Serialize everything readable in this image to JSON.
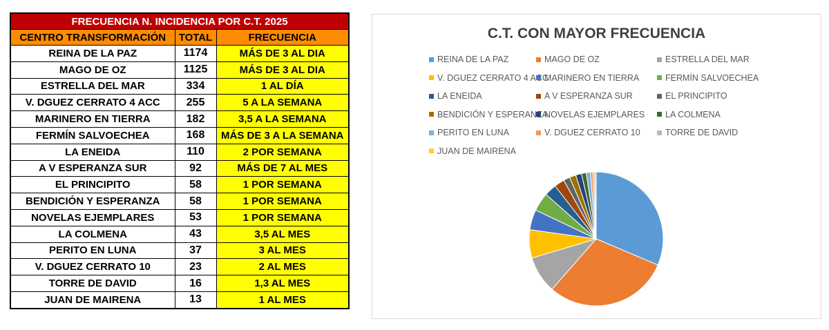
{
  "table": {
    "title": "FRECUENCIA N. INCIDENCIA POR C.T.  2025",
    "headers": [
      "CENTRO TRANSFORMACIÓN",
      "TOTAL",
      "FRECUENCIA"
    ],
    "rows": [
      {
        "name": "REINA DE LA PAZ",
        "total": "1174",
        "freq": "MÁS DE 3 AL DIA"
      },
      {
        "name": "MAGO DE OZ",
        "total": "1125",
        "freq": "MÁS DE 3 AL DIA"
      },
      {
        "name": "ESTRELLA DEL MAR",
        "total": "334",
        "freq": "1 AL DÍA"
      },
      {
        "name": "V. DGUEZ CERRATO 4 ACC",
        "total": "255",
        "freq": "5 A LA SEMANA"
      },
      {
        "name": "MARINERO EN TIERRA",
        "total": "182",
        "freq": "3,5 A LA SEMANA"
      },
      {
        "name": "FERMÍN SALVOECHEA",
        "total": "168",
        "freq": "MÁS DE 3 A LA SEMANA"
      },
      {
        "name": "LA ENEIDA",
        "total": "110",
        "freq": "2 POR SEMANA"
      },
      {
        "name": "A V ESPERANZA SUR",
        "total": "92",
        "freq": "MÁS DE 7 AL MES"
      },
      {
        "name": "EL PRINCIPITO",
        "total": "58",
        "freq": "1 POR SEMANA"
      },
      {
        "name": "BENDICIÓN Y ESPERANZA",
        "total": "58",
        "freq": "1 POR SEMANA"
      },
      {
        "name": "NOVELAS EJEMPLARES",
        "total": "53",
        "freq": "1 POR SEMANA"
      },
      {
        "name": "LA COLMENA",
        "total": "43",
        "freq": "3,5 AL MES"
      },
      {
        "name": "PERITO EN LUNA",
        "total": "37",
        "freq": "3 AL MES"
      },
      {
        "name": "V. DGUEZ CERRATO 10",
        "total": "23",
        "freq": "2 AL MES"
      },
      {
        "name": "TORRE DE DAVID",
        "total": "16",
        "freq": "1,3 AL MES"
      },
      {
        "name": "JUAN DE MAIRENA",
        "total": "13",
        "freq": "1 AL MES"
      }
    ]
  },
  "chart_data": {
    "type": "pie",
    "title": "C.T. CON MAYOR FRECUENCIA",
    "legend_position": "top",
    "categories": [
      "REINA DE LA PAZ",
      "MAGO DE OZ",
      "ESTRELLA DEL MAR",
      "V. DGUEZ CERRATO 4 ACC",
      "MARINERO EN TIERRA",
      "FERMÍN SALVOECHEA",
      "LA ENEIDA",
      "A V ESPERANZA SUR",
      "EL PRINCIPITO",
      "BENDICIÓN Y ESPERANZA",
      "NOVELAS EJEMPLARES",
      "LA COLMENA",
      "PERITO EN LUNA",
      "V. DGUEZ CERRATO 10",
      "TORRE DE DAVID",
      "JUAN DE MAIRENA"
    ],
    "values": [
      1174,
      1125,
      334,
      255,
      182,
      168,
      110,
      92,
      58,
      58,
      53,
      43,
      37,
      23,
      16,
      13
    ],
    "colors": [
      "#5b9bd5",
      "#ed7d31",
      "#a5a5a5",
      "#ffc000",
      "#4472c4",
      "#70ad47",
      "#255e91",
      "#9e480e",
      "#636363",
      "#997300",
      "#264478",
      "#43682b",
      "#7cafdd",
      "#f1975a",
      "#b7b7b7",
      "#ffcd33"
    ]
  }
}
